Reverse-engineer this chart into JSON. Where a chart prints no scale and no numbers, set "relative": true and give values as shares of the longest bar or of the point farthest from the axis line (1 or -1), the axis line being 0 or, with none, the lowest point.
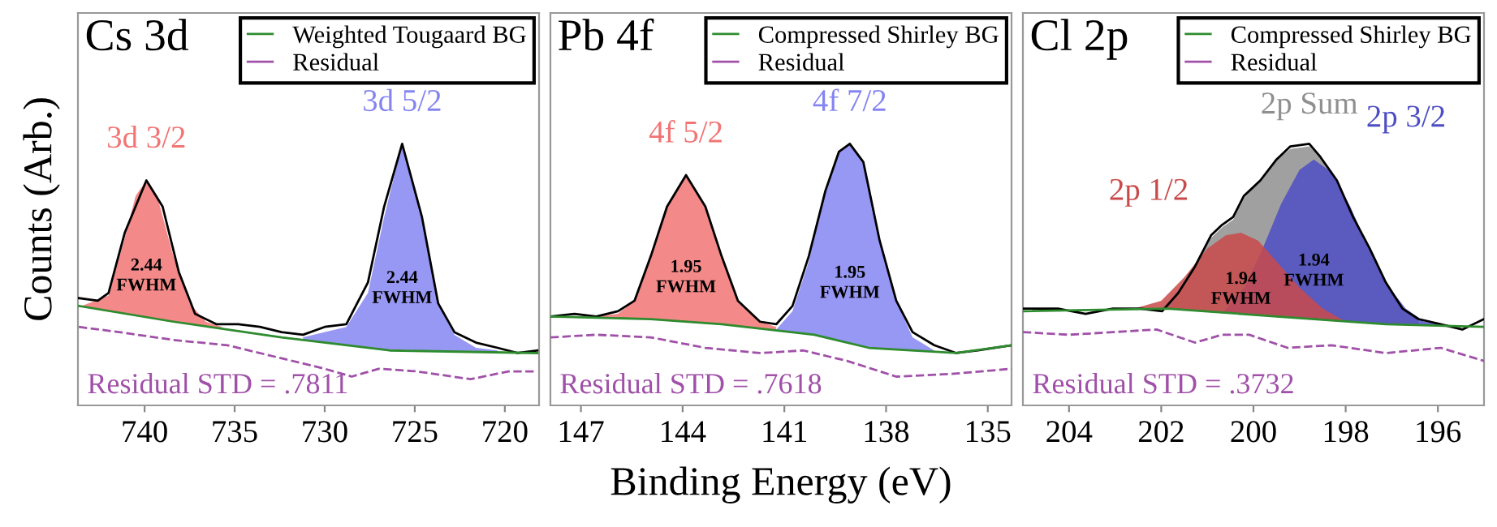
{
  "chart_data": [
    {
      "type": "line",
      "title": "Cs 3d",
      "ylabel": "Counts (Arb.)",
      "relative": true,
      "xlim": [
        743.7,
        718.1
      ],
      "xticks": [
        740,
        735,
        730,
        725,
        720
      ],
      "legend": "top right",
      "series": [
        {
          "type": "area",
          "name": "3d 3/2",
          "color": "#f27474",
          "x": [
            743.5,
            742.0,
            741.1,
            740.5,
            739.9,
            739.3,
            738.4,
            737.5,
            736.6,
            735.7
          ],
          "values": [
            0.38,
            0.42,
            0.64,
            0.8,
            0.86,
            0.8,
            0.57,
            0.39,
            0.32,
            0.3
          ]
        },
        {
          "type": "area",
          "name": "3d 5/2",
          "color": "#8585f2",
          "x": [
            731.2,
            728.8,
            727.6,
            726.7,
            725.7,
            724.6,
            723.7,
            722.8,
            721.6,
            720.4
          ],
          "values": [
            0.26,
            0.3,
            0.43,
            0.72,
            1.0,
            0.72,
            0.39,
            0.27,
            0.22,
            0.21
          ]
        },
        {
          "color": "#000000",
          "x": [
            743.65,
            742.6,
            742.0,
            741.1,
            739.9,
            739.0,
            738.1,
            737.2,
            736.0,
            734.8,
            733.6,
            732.4,
            731.2,
            730.0,
            728.8,
            727.6,
            726.7,
            725.7,
            724.6,
            723.7,
            722.8,
            721.6,
            720.4,
            719.3,
            718.2
          ],
          "values": [
            0.41,
            0.4,
            0.43,
            0.66,
            0.86,
            0.76,
            0.51,
            0.35,
            0.31,
            0.31,
            0.3,
            0.28,
            0.27,
            0.3,
            0.31,
            0.47,
            0.76,
            1.0,
            0.72,
            0.39,
            0.28,
            0.24,
            0.22,
            0.2,
            0.21
          ]
        },
        {
          "name": "Weighted Tougaard BG",
          "color": "#2e8b2e",
          "x": [
            743.65,
            738.4,
            732.4,
            726.4,
            718.2
          ],
          "values": [
            0.38,
            0.32,
            0.26,
            0.21,
            0.2
          ]
        },
        {
          "name": "Residual",
          "color": "#a050a8",
          "line_style": "dashed",
          "x": [
            743.65,
            741.4,
            738.4,
            735.4,
            732.4,
            730.0,
            728.5,
            727.0,
            724.9,
            721.9,
            719.8,
            718.2
          ],
          "values": [
            0.3,
            0.28,
            0.25,
            0.23,
            0.18,
            0.14,
            0.11,
            0.14,
            0.13,
            0.1,
            0.13,
            0.13
          ]
        }
      ],
      "annotations": [
        "2.44\nFWHM",
        "2.44\nFWHM",
        "Residual STD = .7811"
      ]
    },
    {
      "type": "line",
      "title": "Pb 4f",
      "xlabel": "Binding Energy (eV)",
      "relative": true,
      "xlim": [
        147.9,
        134.3
      ],
      "xticks": [
        147,
        144,
        141,
        138,
        135
      ],
      "legend": "top right",
      "series": [
        {
          "type": "area",
          "name": "4f 5/2",
          "color": "#f27474",
          "x": [
            146.55,
            145.91,
            145.42,
            144.94,
            144.46,
            143.9,
            143.33,
            142.85,
            142.37,
            141.72,
            141.24
          ],
          "values": [
            0.34,
            0.35,
            0.4,
            0.57,
            0.76,
            0.88,
            0.76,
            0.57,
            0.4,
            0.32,
            0.3
          ]
        },
        {
          "type": "area",
          "name": "4f 7/2",
          "color": "#8585f2",
          "x": [
            141.24,
            140.76,
            140.28,
            139.79,
            139.39,
            139.07,
            138.67,
            138.19,
            137.7,
            137.22,
            136.58
          ],
          "values": [
            0.29,
            0.36,
            0.55,
            0.82,
            0.97,
            1.0,
            0.93,
            0.63,
            0.4,
            0.26,
            0.21
          ]
        },
        {
          "color": "#000000",
          "x": [
            147.9,
            147.19,
            146.55,
            145.91,
            145.42,
            144.94,
            144.46,
            143.9,
            143.33,
            142.85,
            142.37,
            141.72,
            141.24,
            140.76,
            140.28,
            139.79,
            139.39,
            139.07,
            138.67,
            138.19,
            137.7,
            137.22,
            136.58,
            135.93,
            135.29,
            134.3
          ],
          "values": [
            0.34,
            0.35,
            0.34,
            0.36,
            0.4,
            0.57,
            0.76,
            0.88,
            0.76,
            0.57,
            0.4,
            0.32,
            0.31,
            0.38,
            0.57,
            0.82,
            0.97,
            1.0,
            0.93,
            0.63,
            0.4,
            0.28,
            0.23,
            0.2,
            0.21,
            0.23
          ]
        },
        {
          "name": "Compressed Shirley BG",
          "color": "#2e8b2e",
          "x": [
            147.9,
            144.94,
            142.85,
            140.12,
            138.51,
            135.93,
            134.3
          ],
          "values": [
            0.34,
            0.33,
            0.31,
            0.27,
            0.22,
            0.2,
            0.23
          ]
        },
        {
          "name": "Residual",
          "color": "#a050a8",
          "line_style": "dashed",
          "x": [
            147.9,
            146.55,
            144.94,
            143.33,
            141.72,
            140.44,
            139.15,
            137.7,
            136.09,
            134.3
          ],
          "values": [
            0.26,
            0.27,
            0.26,
            0.22,
            0.2,
            0.21,
            0.17,
            0.11,
            0.12,
            0.14
          ]
        }
      ],
      "annotations": [
        "1.95\nFWHM",
        "1.95\nFWHM",
        "Residual STD = .7618"
      ]
    },
    {
      "type": "line",
      "title": "Cl 2p",
      "relative": true,
      "xlim": [
        205.0,
        195.0
      ],
      "xticks": [
        204,
        202,
        200,
        198,
        196
      ],
      "legend": "top right",
      "series": [
        {
          "type": "area",
          "name": "2p Sum",
          "color": "#8f8f8f",
          "x": [
            202.0,
            201.63,
            201.27,
            200.92,
            200.68,
            200.44,
            200.21,
            199.85,
            199.5,
            199.2,
            198.79,
            198.55,
            198.19,
            197.84,
            197.48,
            197.13,
            196.77,
            196.42
          ],
          "values": [
            0.37,
            0.43,
            0.53,
            0.64,
            0.68,
            0.71,
            0.79,
            0.86,
            0.94,
            0.98,
            0.99,
            0.95,
            0.86,
            0.72,
            0.6,
            0.47,
            0.37,
            0.33
          ]
        },
        {
          "type": "area",
          "name": "2p 3/2",
          "color": "#4d4dc4",
          "x": [
            200.68,
            200.2,
            199.8,
            199.4,
            199.0,
            198.69,
            198.3,
            197.9,
            197.5,
            197.1,
            196.7,
            196.3,
            195.9,
            195.47
          ],
          "values": [
            0.35,
            0.45,
            0.6,
            0.77,
            0.9,
            0.94,
            0.89,
            0.76,
            0.6,
            0.46,
            0.37,
            0.32,
            0.31,
            0.3
          ]
        },
        {
          "type": "area",
          "name": "2p 1/2",
          "color": "#c94a4a",
          "x": [
            202.58,
            202.0,
            201.5,
            201.0,
            200.6,
            200.27,
            199.9,
            199.5,
            199.0,
            198.5,
            198.0,
            197.84
          ],
          "values": [
            0.37,
            0.4,
            0.49,
            0.6,
            0.65,
            0.66,
            0.63,
            0.55,
            0.45,
            0.37,
            0.32,
            0.32
          ]
        },
        {
          "color": "#000000",
          "x": [
            205.0,
            204.24,
            203.64,
            203.05,
            202.46,
            201.98,
            201.63,
            201.27,
            200.92,
            200.68,
            200.44,
            200.21,
            199.85,
            199.5,
            199.2,
            198.79,
            198.55,
            198.19,
            197.84,
            197.48,
            197.13,
            196.77,
            196.42,
            195.94,
            195.47,
            195.0
          ],
          "values": [
            0.37,
            0.37,
            0.35,
            0.37,
            0.37,
            0.36,
            0.43,
            0.53,
            0.65,
            0.69,
            0.72,
            0.8,
            0.86,
            0.94,
            0.99,
            1.0,
            0.95,
            0.86,
            0.72,
            0.6,
            0.47,
            0.37,
            0.33,
            0.31,
            0.29,
            0.33
          ]
        },
        {
          "name": "Compressed Shirley BG",
          "color": "#2e8b2e",
          "x": [
            205.0,
            201.87,
            199.5,
            197.13,
            195.0
          ],
          "values": [
            0.36,
            0.37,
            0.34,
            0.31,
            0.3
          ]
        },
        {
          "name": "Residual",
          "color": "#a050a8",
          "line_style": "dashed",
          "x": [
            205.0,
            204.0,
            203.05,
            202.1,
            201.27,
            200.68,
            200.09,
            199.26,
            198.31,
            197.13,
            195.94,
            195.0
          ],
          "values": [
            0.28,
            0.27,
            0.28,
            0.29,
            0.24,
            0.27,
            0.27,
            0.22,
            0.23,
            0.2,
            0.22,
            0.17
          ]
        }
      ],
      "annotations": [
        "1.94\nFWHM",
        "1.94\nFWHM",
        "Residual STD = .3732"
      ]
    }
  ]
}
